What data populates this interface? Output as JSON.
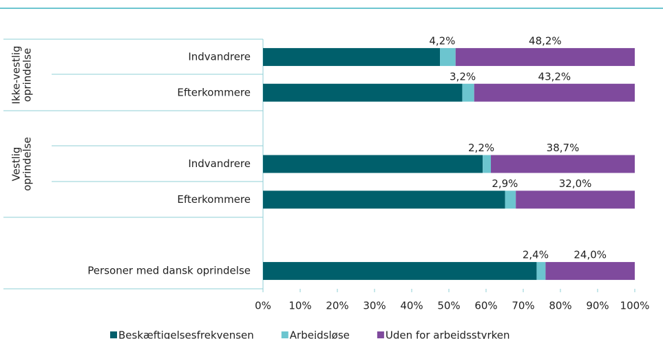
{
  "chart_data": {
    "type": "stacked_hbar",
    "group_labels": [
      [
        "Ikke-vestlig",
        "oprindelse"
      ],
      [
        "Vestlig",
        "oprindelse"
      ]
    ],
    "categories": [
      "Indvandrere",
      "Efterkommere",
      "Indvandrere",
      "Efterkommere",
      "Personer med dansk oprindelse"
    ],
    "series": [
      {
        "name": "Beskæftigelsesfrekvensen",
        "color": "#005f6b",
        "values": [
          47.6,
          53.6,
          59.1,
          65.1,
          73.6
        ]
      },
      {
        "name": "Arbejdsløse",
        "color": "#6cc5cf",
        "values": [
          4.2,
          3.2,
          2.2,
          2.9,
          2.4
        ],
        "value_labels": [
          "4,2%",
          "3,2%",
          "2,2%",
          "2,9%",
          "2,4%"
        ]
      },
      {
        "name": "Uden for arbejdsstyrken",
        "color": "#7f4a9d",
        "values": [
          48.2,
          43.2,
          38.7,
          32.0,
          24.0
        ],
        "value_labels": [
          "48,2%",
          "43,2%",
          "38,7%",
          "32,0%",
          "24,0%"
        ]
      }
    ],
    "xlim": [
      0,
      100
    ],
    "xticks": [
      {
        "value": 0,
        "label": "0%"
      },
      {
        "value": 10,
        "label": "10%"
      },
      {
        "value": 20,
        "label": "20%"
      },
      {
        "value": 30,
        "label": "30%"
      },
      {
        "value": 40,
        "label": "40%"
      },
      {
        "value": 50,
        "label": "50%"
      },
      {
        "value": 60,
        "label": "60%"
      },
      {
        "value": 70,
        "label": "70%"
      },
      {
        "value": 80,
        "label": "80%"
      },
      {
        "value": 90,
        "label": "90%"
      },
      {
        "value": 100,
        "label": "100%"
      }
    ],
    "legend": "bottom"
  }
}
